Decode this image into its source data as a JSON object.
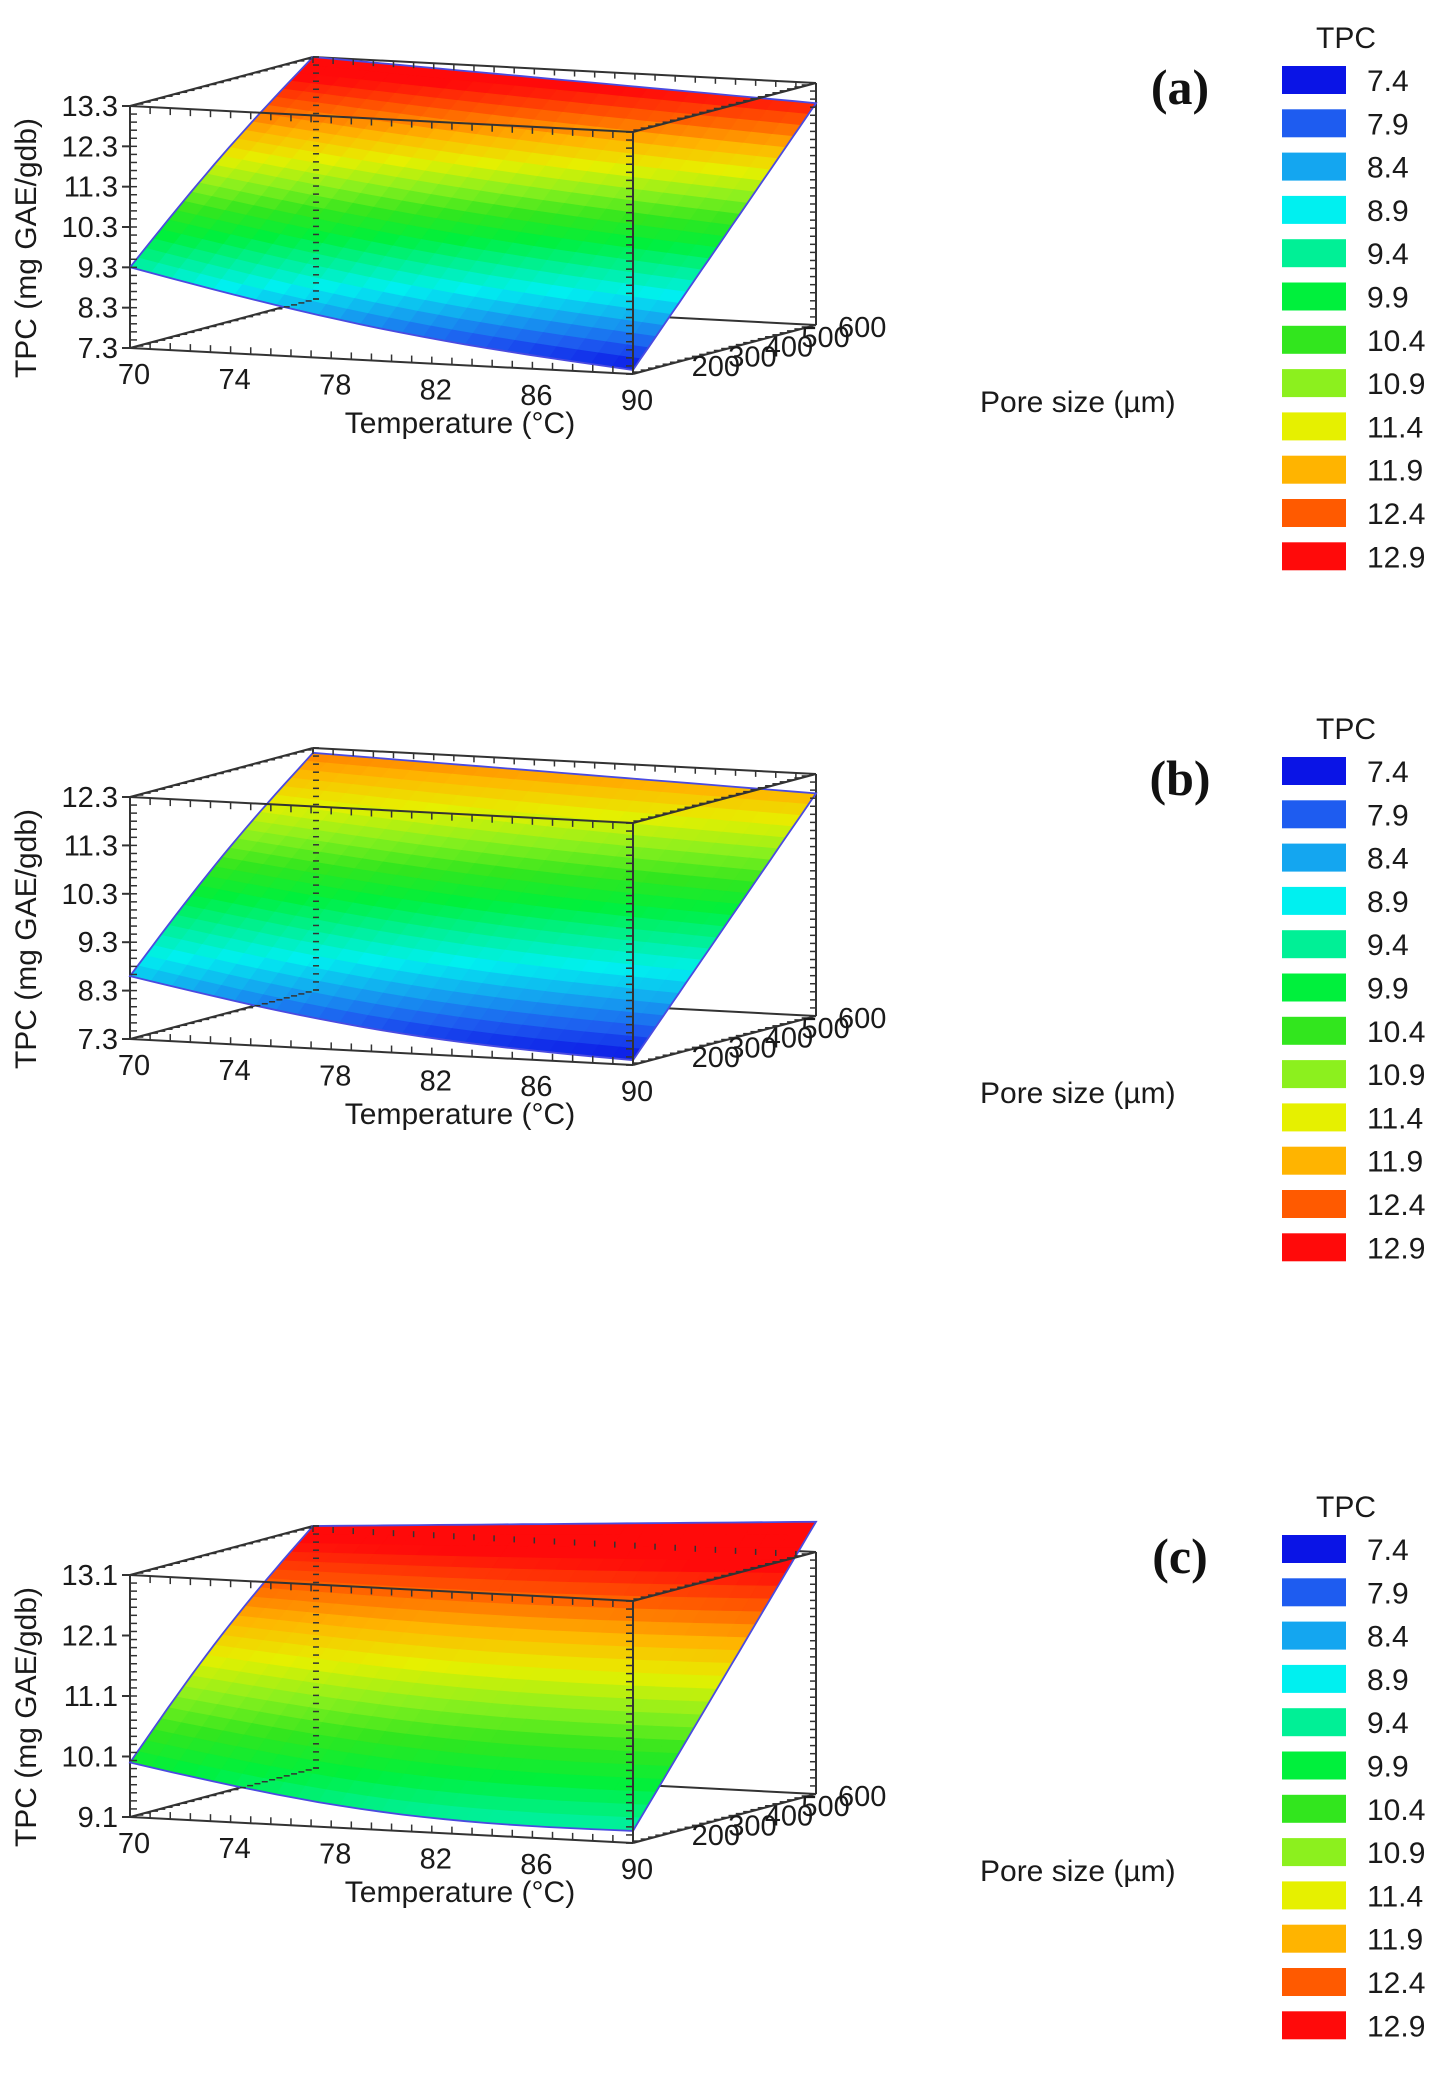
{
  "figure": {
    "legend_colors": [
      "#0a14e6",
      "#1e5cf0",
      "#14a6f0",
      "#00f0f0",
      "#00f096",
      "#00f03c",
      "#32e61e",
      "#8cf01e",
      "#e6f000",
      "#ffb400",
      "#ff5a00",
      "#ff0a0a"
    ]
  },
  "chart_data": [
    {
      "type": "surface3d",
      "panel_label": "(a)",
      "xlabel": "Temperature (°C)",
      "ylabel": "Pore size (µm)",
      "zlabel": "TPC (mg GAE/gdb)",
      "x_ticks": [
        "70",
        "74",
        "78",
        "82",
        "86",
        "90"
      ],
      "y_ticks": [
        "200",
        "300",
        "400",
        "500",
        "600"
      ],
      "z_ticks": [
        "7.3",
        "8.3",
        "9.3",
        "10.3",
        "11.3",
        "12.3",
        "13.3"
      ],
      "xlim": [
        70,
        90
      ],
      "ylim": [
        100,
        600
      ],
      "zlim": [
        7.3,
        13.3
      ],
      "corner_values": {
        "t70_p100": 9.3,
        "t90_p100": 7.4,
        "t70_p600": 13.3,
        "t90_p600": 12.8
      },
      "legend": {
        "title": "TPC",
        "levels": [
          "7.4",
          "7.9",
          "8.4",
          "8.9",
          "9.4",
          "9.9",
          "10.4",
          "10.9",
          "11.4",
          "11.9",
          "12.4",
          "12.9"
        ]
      }
    },
    {
      "type": "surface3d",
      "panel_label": "(b)",
      "xlabel": "Temperature (°C)",
      "ylabel": "Pore size (µm)",
      "zlabel": "TPC (mg GAE/gdb)",
      "x_ticks": [
        "70",
        "74",
        "78",
        "82",
        "86",
        "90"
      ],
      "y_ticks": [
        "200",
        "300",
        "400",
        "500",
        "600"
      ],
      "z_ticks": [
        "7.3",
        "8.3",
        "9.3",
        "10.3",
        "11.3",
        "12.3"
      ],
      "xlim": [
        70,
        90
      ],
      "ylim": [
        100,
        600
      ],
      "zlim": [
        7.3,
        12.3
      ],
      "corner_values": {
        "t70_p100": 8.6,
        "t90_p100": 7.4,
        "t70_p600": 12.2,
        "t90_p600": 11.9
      },
      "legend": {
        "title": "TPC",
        "levels": [
          "7.4",
          "7.9",
          "8.4",
          "8.9",
          "9.4",
          "9.9",
          "10.4",
          "10.9",
          "11.4",
          "11.9",
          "12.4",
          "12.9"
        ]
      }
    },
    {
      "type": "surface3d",
      "panel_label": "(c)",
      "xlabel": "Temperature (°C)",
      "ylabel": "Pore size (µm)",
      "zlabel": "TPC (mg GAE/gdb)",
      "x_ticks": [
        "70",
        "74",
        "78",
        "82",
        "86",
        "90"
      ],
      "y_ticks": [
        "200",
        "300",
        "400",
        "500",
        "600"
      ],
      "z_ticks": [
        "9.1",
        "10.1",
        "11.1",
        "12.1",
        "13.1"
      ],
      "xlim": [
        70,
        90
      ],
      "ylim": [
        100,
        600
      ],
      "zlim": [
        9.1,
        13.1
      ],
      "corner_values": {
        "t70_p100": 10.0,
        "t90_p100": 9.3,
        "t70_p600": 13.1,
        "t90_p600": 13.6
      },
      "legend": {
        "title": "TPC",
        "levels": [
          "7.4",
          "7.9",
          "8.4",
          "8.9",
          "9.4",
          "9.9",
          "10.4",
          "10.9",
          "11.4",
          "11.9",
          "12.4",
          "12.9"
        ]
      }
    }
  ]
}
